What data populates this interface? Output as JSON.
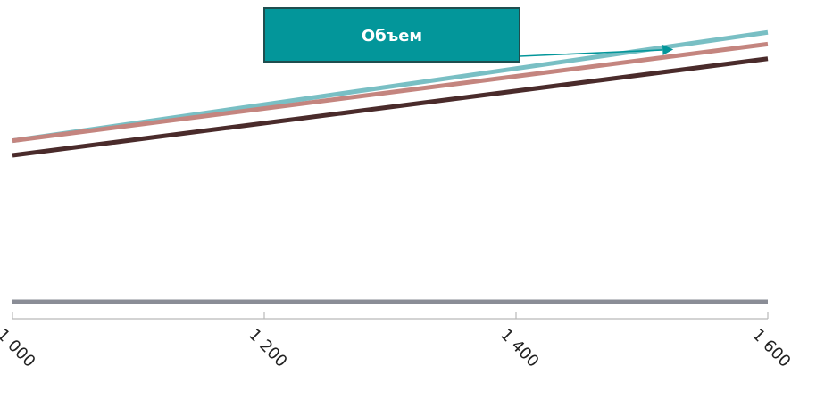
{
  "chart_data": {
    "type": "line",
    "x": [
      1000,
      1600
    ],
    "xlim": [
      1000,
      1600
    ],
    "x_ticks": [
      1000,
      1200,
      1400,
      1600
    ],
    "x_tick_labels": [
      "1 000",
      "1 200",
      "1 400",
      "1 600"
    ],
    "ylim": [
      0,
      100
    ],
    "grid": false,
    "legend": "none",
    "series": [
      {
        "values": [
          55,
          92
        ],
        "color": "#79bfc4"
      },
      {
        "values": [
          55,
          88
        ],
        "color": "#c4857f"
      },
      {
        "values": [
          50,
          83
        ],
        "color": "#4a2b2b"
      },
      {
        "values": [
          0,
          0
        ],
        "color": "#8a8d96"
      }
    ],
    "annotations": [
      {
        "text": "Объем",
        "points_to_series": 0,
        "points_to_x": 1525,
        "fill": "#03969a",
        "border": "#1f4e4f"
      }
    ]
  }
}
